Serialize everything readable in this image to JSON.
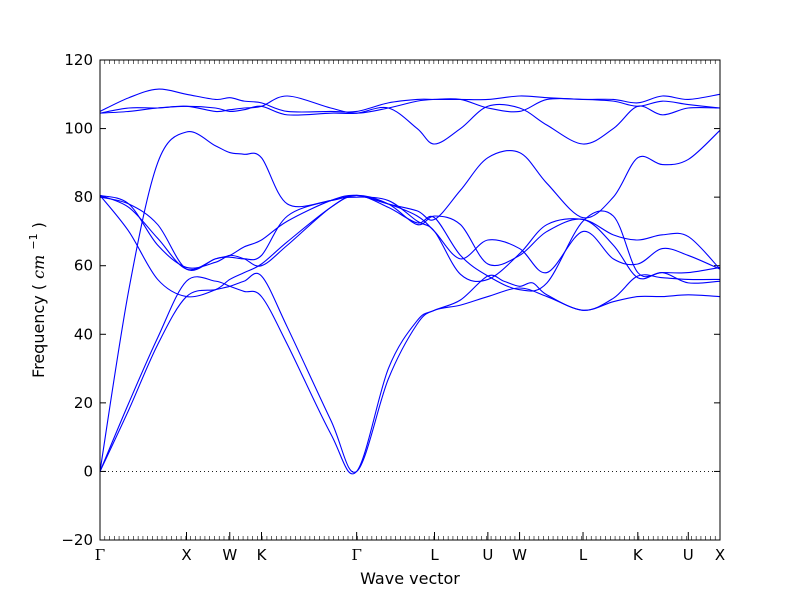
{
  "chart_data": {
    "type": "line",
    "title": "",
    "xlabel": "Wave vector",
    "ylabel": "Frequency",
    "ylabel_unit_base": "cm",
    "ylabel_unit_exp": "−1",
    "ylim": [
      -20,
      120
    ],
    "yticks": [
      -20,
      0,
      20,
      40,
      60,
      80,
      100,
      120
    ],
    "xlim": [
      0,
      21.5
    ],
    "kpoints": [
      {
        "label": "Γ",
        "x": 0
      },
      {
        "label": "X",
        "x": 3
      },
      {
        "label": "W",
        "x": 4.5
      },
      {
        "label": "K",
        "x": 5.6
      },
      {
        "label": "Γ",
        "x": 8.9
      },
      {
        "label": "L",
        "x": 11.6
      },
      {
        "label": "U",
        "x": 13.45
      },
      {
        "label": "W",
        "x": 14.55
      },
      {
        "label": "L",
        "x": 16.75
      },
      {
        "label": "K",
        "x": 18.65
      },
      {
        "label": "U",
        "x": 20.4
      },
      {
        "label": "X",
        "x": 21.5
      }
    ],
    "zero_line": true,
    "line_color": "#0000ff",
    "series": [
      {
        "x": [
          0,
          1,
          2,
          3,
          4,
          4.5,
          5,
          5.6,
          6.5,
          8,
          8.9,
          10,
          11,
          11.6,
          12.5,
          13.45,
          14.55,
          15.5,
          16.75,
          17.8,
          18.65,
          19.5,
          20.4,
          21.5
        ],
        "y": [
          0,
          18,
          37,
          51,
          53,
          54,
          55.5,
          57,
          42,
          15,
          0,
          27,
          43,
          47,
          48.5,
          51,
          53.5,
          51,
          47,
          49.5,
          51,
          51,
          51.5,
          51
        ]
      },
      {
        "x": [
          0,
          1,
          2,
          3,
          4,
          4.5,
          5,
          5.6,
          6.5,
          8,
          8.9,
          10,
          11,
          11.6,
          12.5,
          13.45,
          14,
          14.55,
          15,
          15.5,
          16.75,
          17.8,
          18.65,
          19.5,
          20.4,
          21.5
        ],
        "y": [
          0,
          20,
          39,
          55.5,
          55.5,
          54,
          52.5,
          51,
          37,
          11,
          0,
          30,
          44,
          47,
          50,
          57,
          55.5,
          54,
          55,
          51.5,
          47,
          50.5,
          57,
          56.5,
          56,
          56
        ]
      },
      {
        "x": [
          0,
          1,
          2,
          3,
          4,
          4.5,
          5,
          5.6,
          6.5,
          8,
          8.9,
          10,
          11,
          11.6,
          12.5,
          13.45,
          14.55,
          15.5,
          16.75,
          17.8,
          18.65,
          19.5,
          20.4,
          21.5
        ],
        "y": [
          80.5,
          70,
          56,
          51,
          53,
          56,
          58,
          60.5,
          67,
          77,
          80.5,
          77,
          72.5,
          74,
          63,
          57,
          53,
          55,
          73,
          74.5,
          58,
          58,
          58,
          59.5
        ]
      },
      {
        "x": [
          0,
          1,
          2,
          3,
          4,
          4.5,
          5,
          5.6,
          6.5,
          8,
          8.9,
          10,
          11,
          11.6,
          12.5,
          13.45,
          14.55,
          15.5,
          16.75,
          17.8,
          18.65,
          19.5,
          20.4,
          21.5
        ],
        "y": [
          80.5,
          78,
          66,
          59.5,
          61,
          63,
          62,
          60,
          66,
          77,
          80.5,
          78,
          72,
          74.5,
          72,
          60.5,
          63,
          70,
          73.5,
          66,
          56.5,
          58,
          55,
          55.5
        ]
      },
      {
        "x": [
          0,
          1,
          2,
          3,
          4,
          4.5,
          5,
          5.6,
          6.5,
          8,
          8.9,
          10,
          11,
          11.6,
          12.5,
          13.45,
          14.55,
          15.5,
          16.75,
          17.8,
          18.65,
          19.5,
          20.4,
          21.5
        ],
        "y": [
          80.5,
          77,
          68,
          59,
          62,
          63,
          65.5,
          67.5,
          73,
          79,
          80.5,
          78,
          74.5,
          70,
          62,
          67.5,
          65,
          58,
          70,
          62,
          60.5,
          65,
          63,
          59
        ]
      },
      {
        "x": [
          0,
          1,
          2,
          3,
          4,
          4.5,
          5,
          5.6,
          6.5,
          8,
          8.9,
          10,
          11,
          11.6,
          12.5,
          13.45,
          14.55,
          15.5,
          16.75,
          17.8,
          18.65,
          19.5,
          20.4,
          21.5
        ],
        "y": [
          80,
          78,
          72,
          59,
          62,
          62.5,
          62,
          63,
          74.5,
          79,
          80,
          79,
          73,
          70,
          57.5,
          56,
          63.5,
          72,
          73.5,
          69,
          67.5,
          69,
          68.5,
          59
        ]
      },
      {
        "x": [
          0,
          1,
          2,
          3,
          4,
          4.5,
          5,
          5.6,
          6.5,
          8,
          8.9,
          10,
          11,
          11.6,
          12.5,
          13.45,
          14.55,
          15.5,
          16.75,
          17.8,
          18.65,
          19.5,
          20.4,
          21.5
        ],
        "y": [
          0,
          53,
          90,
          99,
          95,
          93,
          92.5,
          91.5,
          78,
          79,
          80.5,
          78,
          76,
          73.5,
          82,
          91.5,
          93,
          84,
          74,
          80,
          91.5,
          89.5,
          91,
          99.5
        ]
      },
      {
        "x": [
          0,
          1,
          2,
          3,
          4,
          4.5,
          5,
          5.6,
          6.5,
          8,
          8.9,
          10,
          11,
          11.6,
          12.5,
          13.45,
          14.55,
          15.5,
          16.75,
          17.8,
          18.65,
          19.5,
          20.4,
          21.5
        ],
        "y": [
          104.5,
          105,
          106,
          106.5,
          106,
          105,
          105.5,
          106.5,
          104,
          104.5,
          104.5,
          106,
          100,
          95.5,
          100,
          106.5,
          106,
          101,
          95.5,
          100,
          106.5,
          104,
          106,
          106
        ]
      },
      {
        "x": [
          0,
          1,
          2,
          3,
          4,
          4.5,
          5,
          5.6,
          6.5,
          8,
          8.9,
          10,
          11,
          11.6,
          12.5,
          13.45,
          14.55,
          15.5,
          16.75,
          17.8,
          18.65,
          19.5,
          20.4,
          21.5
        ],
        "y": [
          104.5,
          106,
          106,
          106.5,
          105,
          105.5,
          106,
          106.5,
          109.5,
          106,
          104.5,
          106,
          108,
          108.5,
          108.5,
          106,
          105,
          108.5,
          108.5,
          108,
          106.5,
          108,
          107,
          106
        ]
      },
      {
        "x": [
          0,
          1,
          2,
          3,
          4,
          4.5,
          5,
          5.6,
          6.5,
          8,
          8.9,
          10,
          11,
          11.6,
          12.5,
          13.45,
          14.55,
          15.5,
          16.75,
          17.8,
          18.65,
          19.5,
          20.4,
          21.5
        ],
        "y": [
          105,
          109,
          111.5,
          110,
          108.5,
          109,
          108,
          107.5,
          105,
          105,
          105,
          107.5,
          108.5,
          108.5,
          108.5,
          108.5,
          109.5,
          109,
          108.5,
          108.5,
          107.5,
          109.5,
          108.5,
          110
        ]
      }
    ]
  }
}
